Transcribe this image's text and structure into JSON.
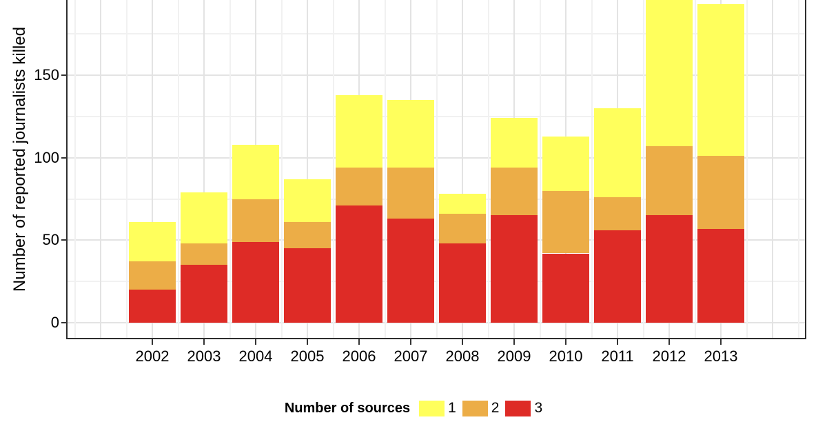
{
  "chart_data": {
    "type": "bar",
    "variant": "stacked-vertical",
    "title": "",
    "xlabel": "",
    "ylabel": "Number of reported journalists killed",
    "categories": [
      "2002",
      "2003",
      "2004",
      "2005",
      "2006",
      "2007",
      "2008",
      "2009",
      "2010",
      "2011",
      "2012",
      "2013"
    ],
    "series": [
      {
        "name": "1",
        "color": "#FFFF5C",
        "values": [
          24,
          31,
          33,
          26,
          44,
          41,
          12,
          30,
          33,
          54,
          91,
          92
        ]
      },
      {
        "name": "2",
        "color": "#ECAD47",
        "values": [
          17,
          13,
          26,
          16,
          23,
          31,
          18,
          29,
          38,
          20,
          42,
          44
        ]
      },
      {
        "name": "3",
        "color": "#DE2B26",
        "values": [
          20,
          35,
          49,
          45,
          71,
          63,
          48,
          65,
          42,
          56,
          65,
          57
        ]
      }
    ],
    "stack_order_bottom_to_top": [
      "3",
      "2",
      "1"
    ],
    "totals": [
      61,
      79,
      108,
      87,
      138,
      135,
      78,
      124,
      113,
      130,
      198,
      193
    ],
    "y_axis": {
      "tick_values": [
        0,
        50,
        100,
        150
      ],
      "minor_gridline_values": [
        25,
        75,
        125,
        175
      ]
    },
    "legend": {
      "title": "Number of sources",
      "position": "bottom",
      "entries": [
        {
          "label": "1",
          "color": "#FFFF5C"
        },
        {
          "label": "2",
          "color": "#ECAD47"
        },
        {
          "label": "3",
          "color": "#DE2B26"
        }
      ]
    },
    "grid": {
      "major": true,
      "minor": true
    }
  },
  "style": {
    "background": "#FFFFFF",
    "axis_line_color": "#2E2E2E",
    "tick_color": "#333333",
    "grid_major_color": "#E3E3E3",
    "grid_minor_color": "#F1F1F1",
    "text_color": "#000000"
  }
}
